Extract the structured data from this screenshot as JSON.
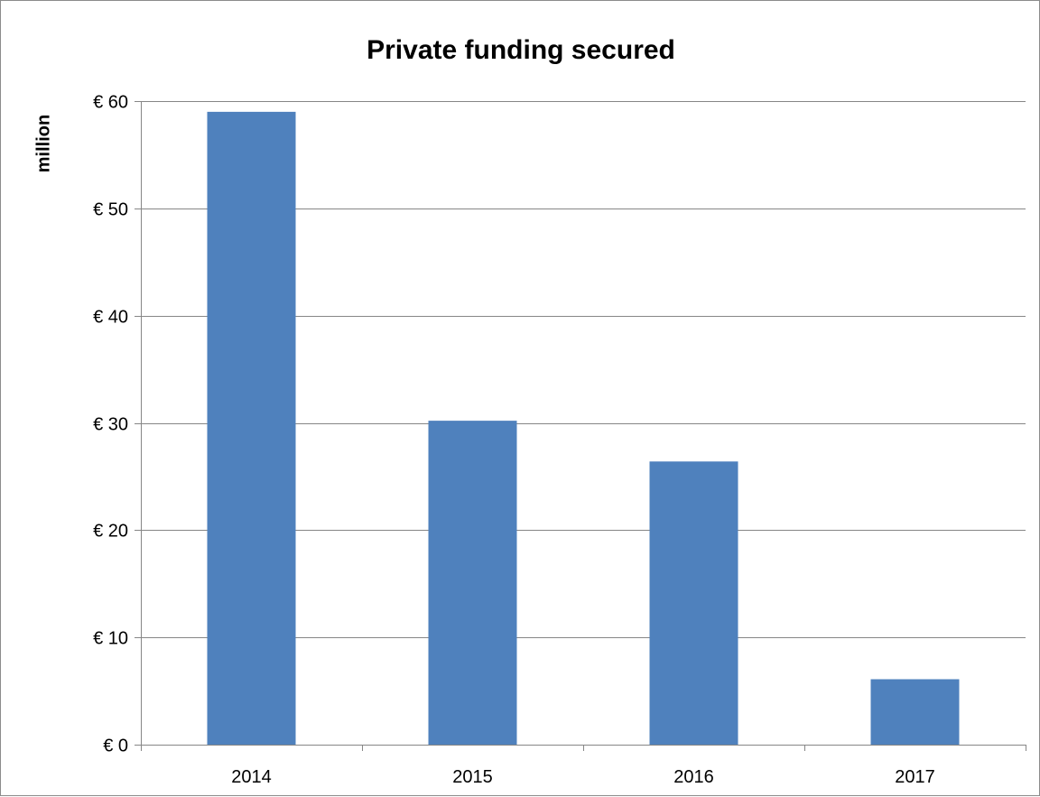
{
  "chart_data": {
    "type": "bar",
    "title": "Private funding secured",
    "xlabel": "",
    "ylabel": "million",
    "categories": [
      "2014",
      "2015",
      "2016",
      "2017"
    ],
    "values": [
      59,
      30.2,
      26.4,
      6.1
    ],
    "ylim": [
      0,
      60
    ],
    "yticks": [
      0,
      10,
      20,
      30,
      40,
      50,
      60
    ],
    "ytick_labels": [
      "€ 0",
      "€ 10",
      "€ 20",
      "€ 30",
      "€ 40",
      "€ 50",
      "€ 60"
    ],
    "grid": true,
    "legend": "none",
    "colors": {
      "bar": "#4f81bd",
      "grid": "#868686",
      "axis": "#868686",
      "text": "#000000"
    }
  }
}
